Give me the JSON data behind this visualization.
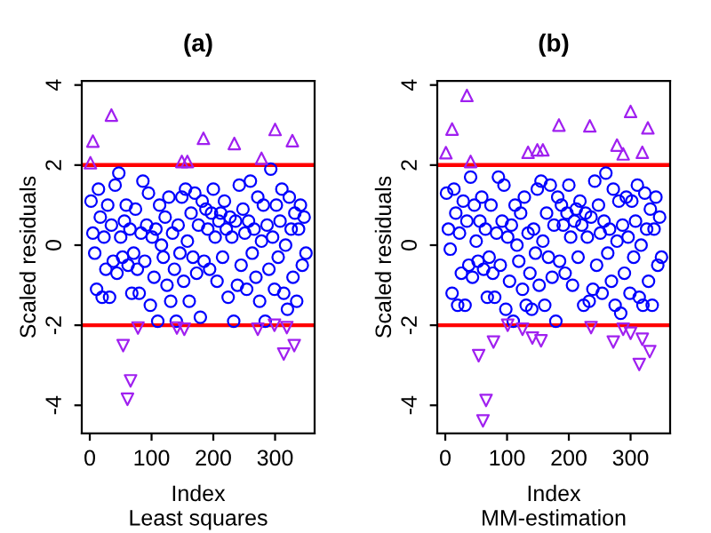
{
  "chart_data": [
    {
      "type": "scatter",
      "title": "(a)",
      "xlabel": "Index",
      "ylabel": "Scaled residuals",
      "annotations": [
        "Least squares"
      ],
      "xlim": [
        -13,
        364
      ],
      "ylim": [
        -4.7,
        4.1
      ],
      "xticks": [
        0,
        100,
        200,
        300
      ],
      "yticks": [
        -4,
        -2,
        0,
        2,
        4
      ],
      "grid": false,
      "legend": false,
      "ref_lines": [
        {
          "axis": "y",
          "value": 2,
          "color": "#ff0000"
        },
        {
          "axis": "y",
          "value": -2,
          "color": "#ff0000"
        }
      ],
      "series": [
        {
          "color": "#0000ff",
          "marker": "circle",
          "x": [
            2,
            5,
            8,
            11,
            14,
            17,
            20,
            23,
            26,
            29,
            32,
            35,
            38,
            41,
            44,
            47,
            50,
            53,
            56,
            59,
            62,
            65,
            68,
            71,
            74,
            77,
            80,
            83,
            86,
            89,
            92,
            95,
            98,
            101,
            104,
            107,
            110,
            113,
            116,
            119,
            122,
            125,
            128,
            131,
            134,
            137,
            140,
            143,
            146,
            149,
            152,
            155,
            158,
            161,
            164,
            167,
            170,
            173,
            176,
            179,
            182,
            185,
            188,
            191,
            194,
            197,
            200,
            203,
            206,
            209,
            212,
            215,
            218,
            221,
            224,
            227,
            230,
            233,
            236,
            239,
            242,
            245,
            248,
            251,
            254,
            257,
            260,
            263,
            266,
            269,
            272,
            275,
            278,
            281,
            284,
            287,
            290,
            293,
            296,
            299,
            302,
            305,
            308,
            311,
            314,
            317,
            320,
            323,
            326,
            329,
            332,
            335,
            338,
            341,
            344,
            347,
            350
          ],
          "values": [
            1.1,
            0.3,
            -0.2,
            -1.1,
            1.4,
            0.7,
            -1.3,
            0.2,
            -0.6,
            1.0,
            -1.3,
            0.5,
            -0.4,
            1.5,
            -0.7,
            1.8,
            0.2,
            -0.3,
            0.6,
            1.0,
            -0.5,
            0.4,
            -1.2,
            -0.2,
            0.9,
            -0.6,
            -1.2,
            0.3,
            1.6,
            -0.4,
            0.5,
            1.3,
            -1.5,
            0.2,
            -0.8,
            0.4,
            -1.9,
            1.0,
            0.0,
            -0.3,
            0.7,
            -1.0,
            1.2,
            -1.4,
            0.3,
            -0.6,
            -1.9,
            0.5,
            -0.2,
            1.2,
            -0.9,
            1.4,
            0.1,
            -1.4,
            0.8,
            -0.3,
            1.3,
            -0.7,
            0.5,
            -1.8,
            1.1,
            -0.4,
            0.9,
            0.4,
            -0.6,
            0.8,
            1.4,
            0.2,
            -0.9,
            0.6,
            0.8,
            -0.3,
            1.1,
            0.4,
            -1.3,
            0.7,
            0.2,
            -1.9,
            0.6,
            -1.0,
            1.5,
            -0.5,
            0.9,
            0.3,
            -1.1,
            0.6,
            1.6,
            -0.2,
            0.4,
            -0.8,
            1.2,
            -1.4,
            0.1,
            1.0,
            -1.9,
            0.5,
            -0.6,
            1.9,
            0.2,
            -1.1,
            1.0,
            -0.3,
            0.6,
            1.4,
            -1.2,
            0.0,
            -1.6,
            1.2,
            0.4,
            -0.8,
            0.8,
            -1.4,
            0.4,
            1.0,
            -0.5,
            0.7,
            -0.2
          ]
        },
        {
          "color": "#a020f0",
          "marker": "triangle",
          "x": [
            1,
            5,
            35,
            149,
            158,
            184,
            234,
            278,
            300,
            328
          ],
          "values": [
            2.06,
            2.6,
            3.25,
            2.09,
            2.09,
            2.67,
            2.54,
            2.17,
            2.89,
            2.61
          ]
        },
        {
          "color": "#a020f0",
          "marker": "triangle_down",
          "x": [
            54,
            61,
            66,
            78,
            141,
            153,
            272,
            299,
            314,
            319,
            331
          ],
          "values": [
            -2.51,
            -3.85,
            -3.39,
            -2.07,
            -2.07,
            -2.1,
            -2.1,
            -2.0,
            -2.72,
            -2.06,
            -2.51
          ]
        }
      ]
    },
    {
      "type": "scatter",
      "title": "(b)",
      "xlabel": "Index",
      "ylabel": "Scaled residuals",
      "annotations": [
        "MM-estimation"
      ],
      "xlim": [
        -13,
        364
      ],
      "ylim": [
        -4.7,
        4.1
      ],
      "xticks": [
        0,
        100,
        200,
        300
      ],
      "yticks": [
        -4,
        -2,
        0,
        2,
        4
      ],
      "grid": false,
      "legend": false,
      "ref_lines": [
        {
          "axis": "y",
          "value": 2,
          "color": "#ff0000"
        },
        {
          "axis": "y",
          "value": -2,
          "color": "#ff0000"
        }
      ],
      "series": [
        {
          "color": "#0000ff",
          "marker": "circle",
          "x": [
            2,
            5,
            8,
            11,
            14,
            17,
            20,
            23,
            26,
            29,
            32,
            35,
            38,
            41,
            44,
            47,
            50,
            53,
            56,
            59,
            62,
            65,
            68,
            71,
            74,
            77,
            80,
            83,
            86,
            89,
            92,
            95,
            98,
            101,
            104,
            107,
            110,
            113,
            116,
            119,
            122,
            125,
            128,
            131,
            134,
            137,
            140,
            143,
            146,
            149,
            152,
            155,
            158,
            161,
            164,
            167,
            170,
            173,
            176,
            179,
            182,
            185,
            188,
            191,
            194,
            197,
            200,
            203,
            206,
            209,
            212,
            215,
            218,
            221,
            224,
            227,
            230,
            233,
            236,
            239,
            242,
            245,
            248,
            251,
            254,
            257,
            260,
            263,
            266,
            269,
            272,
            275,
            278,
            281,
            284,
            287,
            290,
            293,
            296,
            299,
            302,
            305,
            308,
            311,
            314,
            317,
            320,
            323,
            326,
            329,
            332,
            335,
            338,
            341,
            344,
            347,
            350
          ],
          "values": [
            1.3,
            0.4,
            -0.1,
            -1.2,
            1.4,
            0.8,
            -1.5,
            0.3,
            -0.7,
            1.1,
            -1.5,
            0.6,
            -0.5,
            1.7,
            -0.8,
            1.0,
            0.1,
            -0.4,
            0.6,
            1.2,
            -0.6,
            0.4,
            -1.3,
            -0.3,
            1.0,
            -0.7,
            -1.3,
            0.3,
            1.7,
            -0.5,
            0.6,
            1.5,
            -1.6,
            0.2,
            -0.9,
            0.5,
            -1.9,
            1.0,
            0.0,
            -0.4,
            0.8,
            -1.1,
            1.2,
            -1.5,
            0.3,
            -0.7,
            -1.6,
            0.4,
            -0.2,
            1.4,
            -1.0,
            1.6,
            0.1,
            -1.5,
            0.8,
            -0.3,
            1.5,
            -0.8,
            0.5,
            -1.9,
            1.2,
            -0.4,
            1.0,
            0.5,
            -0.7,
            0.8,
            1.5,
            0.2,
            -1.0,
            0.6,
            0.9,
            -0.3,
            1.1,
            0.5,
            -1.5,
            0.8,
            0.2,
            -1.4,
            0.7,
            -1.1,
            1.6,
            -0.5,
            1.0,
            0.3,
            -1.2,
            0.6,
            1.8,
            -0.2,
            0.4,
            -0.9,
            1.4,
            -1.5,
            0.1,
            1.1,
            -1.7,
            0.5,
            -0.7,
            1.2,
            0.2,
            -1.2,
            1.1,
            -0.3,
            0.6,
            1.5,
            -1.3,
            0.0,
            -1.5,
            1.3,
            0.4,
            -0.9,
            0.9,
            -1.5,
            0.4,
            1.2,
            -0.5,
            0.7,
            -0.3
          ]
        },
        {
          "color": "#a020f0",
          "marker": "triangle",
          "x": [
            1,
            11,
            35,
            41,
            134,
            149,
            158,
            184,
            234,
            278,
            288,
            300,
            319,
            328
          ],
          "values": [
            2.31,
            2.9,
            3.74,
            2.09,
            2.32,
            2.38,
            2.38,
            3.0,
            2.98,
            2.5,
            2.28,
            3.34,
            2.32,
            2.93
          ]
        },
        {
          "color": "#a020f0",
          "marker": "triangle_down",
          "x": [
            54,
            61,
            66,
            78,
            101,
            125,
            141,
            155,
            236,
            272,
            288,
            300,
            314,
            319,
            331
          ],
          "values": [
            -2.76,
            -4.39,
            -3.88,
            -2.42,
            -2.0,
            -2.1,
            -2.32,
            -2.39,
            -2.06,
            -2.42,
            -2.1,
            -2.2,
            -2.98,
            -2.35,
            -2.66
          ]
        }
      ]
    }
  ]
}
